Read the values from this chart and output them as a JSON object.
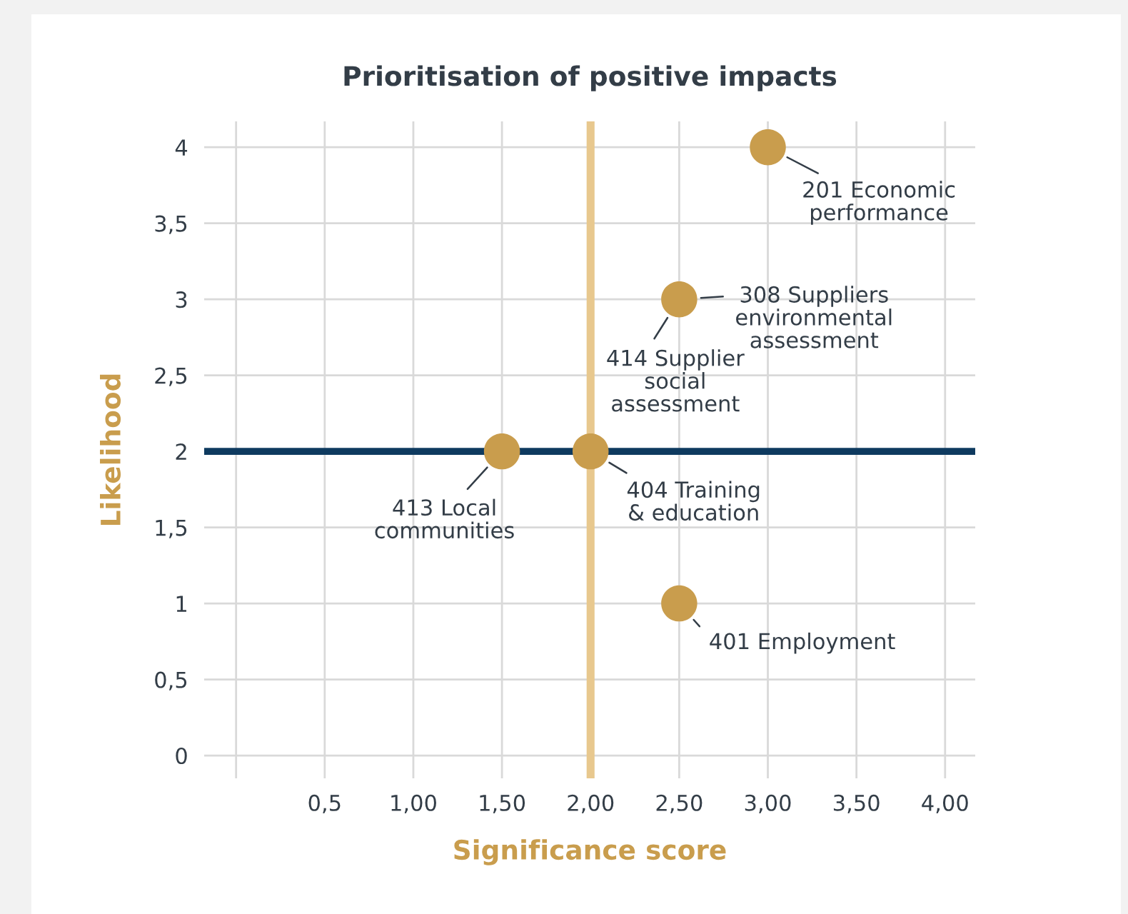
{
  "chart_data": {
    "type": "scatter",
    "title": "Prioritisation of positive impacts",
    "xlabel": "Significance score",
    "ylabel": "Likelihood",
    "x": [
      3,
      2.5,
      1.5,
      2,
      2.5
    ],
    "series": [
      {
        "color": "#c99d4d",
        "values": [
          4,
          3,
          2,
          2,
          1
        ]
      }
    ],
    "marker": "circle",
    "grid": true,
    "legend": false,
    "xlim": [
      -0.18,
      4.17
    ],
    "ylim": [
      -0.15,
      4.17
    ],
    "xticks": [
      {
        "value": 0,
        "label": null
      },
      {
        "value": 0.5,
        "label": "0,5"
      },
      {
        "value": 1,
        "label": "1,00"
      },
      {
        "value": 1.5,
        "label": "1,50"
      },
      {
        "value": 2,
        "label": "2,00"
      },
      {
        "value": 2.5,
        "label": "2,50"
      },
      {
        "value": 3,
        "label": "3,00"
      },
      {
        "value": 3.5,
        "label": "3,50"
      },
      {
        "value": 4,
        "label": "4,00"
      }
    ],
    "yticks": [
      0,
      {
        "value": 0.5,
        "label": "0,5"
      },
      1,
      {
        "value": 1.5,
        "label": "1,5"
      },
      2,
      {
        "value": 2.5,
        "label": "2,5"
      },
      3,
      {
        "value": 3.5,
        "label": "3,5"
      },
      4
    ],
    "ref_lines": [
      {
        "axis": "y",
        "value": 2,
        "color": "#0e3a5f"
      },
      {
        "axis": "x",
        "value": 2,
        "color": "#e8c88e"
      }
    ],
    "annotations": [
      {
        "text": "201 Economic\nperformance",
        "x": 3,
        "y": 4
      },
      {
        "text": "308 Suppliers\nenvironmental\nassessment",
        "x": 2.5,
        "y": 3
      },
      {
        "text": "414 Supplier\nsocial\nassessment",
        "x": 2.5,
        "y": 3
      },
      {
        "text": "413 Local\ncommunities",
        "x": 1.5,
        "y": 2
      },
      {
        "text": "404 Training\n& education",
        "x": 2,
        "y": 2
      },
      {
        "text": "401 Employment",
        "x": 2.5,
        "y": 1
      }
    ]
  }
}
